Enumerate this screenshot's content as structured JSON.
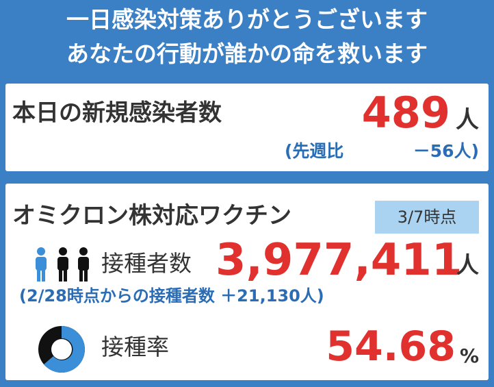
{
  "header": {
    "line1": "一日感染対策ありがとうございます",
    "line2": "あなたの行動が誰かの命を救います"
  },
  "new_cases": {
    "title": "本日の新規感染者数",
    "value": "489",
    "unit": "人",
    "comparison_label": "(先週比",
    "comparison_value": "－56人)"
  },
  "vaccine": {
    "title": "オミクロン株対応ワクチン",
    "as_of": "3/7時点",
    "vaccinated_label": "接種者数",
    "vaccinated_value": "3,977,411",
    "vaccinated_unit": "人",
    "increase_note": "(2/28時点からの接種者数 ＋21,130人)",
    "rate_label": "接種率",
    "rate_value": "54.68",
    "rate_unit": "%"
  }
}
